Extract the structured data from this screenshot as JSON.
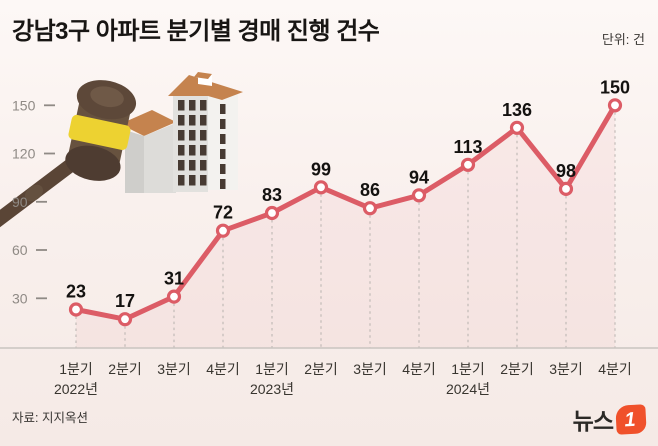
{
  "header": {
    "title": "강남3구 아파트 분기별 경매 진행 건수",
    "unit_label": "단위: 건"
  },
  "chart_data": {
    "type": "line",
    "title": "강남3구 아파트 분기별 경매 진행 건수",
    "unit": "건",
    "categories": [
      "1분기",
      "2분기",
      "3분기",
      "4분기",
      "1분기",
      "2분기",
      "3분기",
      "4분기",
      "1분기",
      "2분기",
      "3분기",
      "4분기"
    ],
    "year_labels": [
      {
        "label": "2022년",
        "index": 0
      },
      {
        "label": "2023년",
        "index": 4
      },
      {
        "label": "2024년",
        "index": 8
      }
    ],
    "values": [
      23,
      17,
      31,
      72,
      83,
      99,
      86,
      94,
      113,
      136,
      98,
      150
    ],
    "y_ticks": [
      30,
      60,
      90,
      120,
      150
    ],
    "ylim": [
      0,
      165
    ],
    "grid": "dashed-vertical-droplines",
    "legend": "none",
    "line_color": "#dc5c66",
    "marker": "open-circle",
    "marker_fill": "#ffffff",
    "axis_line_color": "#c9c4c0",
    "dropline_color": "#b7b2ae",
    "y_tick_color": "#8f8a85",
    "x_label_color": "#38352f",
    "value_label_color": "#141210"
  },
  "footer": {
    "source": "자료: 지지옥션",
    "logo": {
      "text": "뉴스",
      "mark": "1"
    }
  }
}
